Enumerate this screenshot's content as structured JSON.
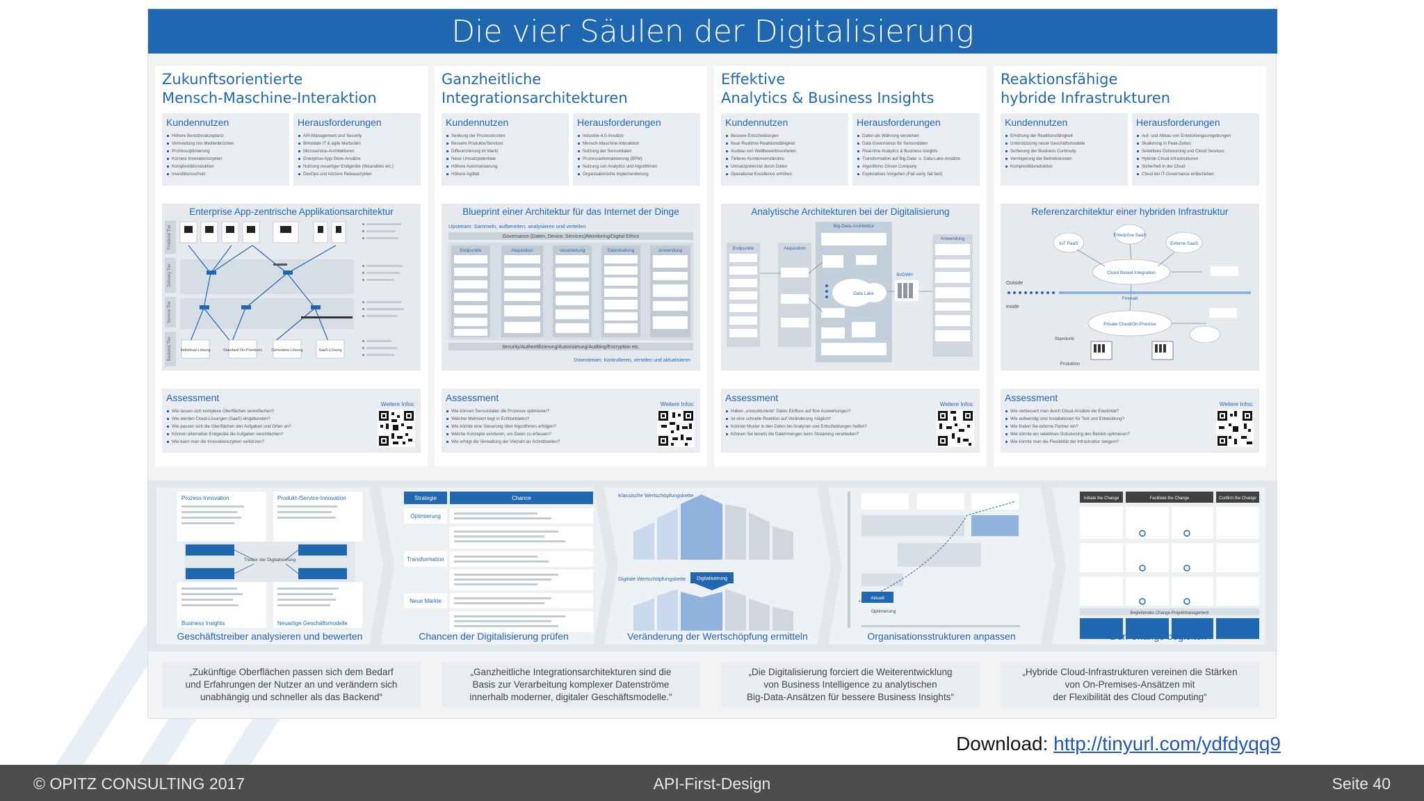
{
  "poster": {
    "title": "Die vier Säulen der Digitalisierung",
    "columns": [
      {
        "title_line1": "Zukunftsorientierte",
        "title_line2": "Mensch-Maschine-Interaktion",
        "benefits_label": "Kundennutzen",
        "benefits": [
          "Höhere Benutzerakzeptanz",
          "Vermeidung von Medienbrüchen",
          "Prozessoptimierung",
          "Kürzere Innovationszyklen",
          "Komplexitätsreduktion",
          "Investitionsschutz"
        ],
        "challenges_label": "Herausforderungen",
        "challenges": [
          "API-Management und Security",
          "Bimodale IT & agile Methoden",
          "Microservice-Architekturen",
          "Enterprise-App-Store-Ansätze",
          "Nutzung neuartiger Endgeräte (Wearables etc.)",
          "DevOps und kürzere Releasezyklen"
        ],
        "diagram_title": "Enterprise App-zentrische Applikationsarchitektur",
        "assessment_label": "Assessment",
        "more_label": "Weitere Infos:",
        "assessment": [
          "Wie lassen sich komplexe Oberflächen vereinfachen?",
          "Wie werden Cloud-Lösungen (SaaS) eingebunden?",
          "Wie passen sich die Oberflächen den Aufgaben und Orten an?",
          "Können alternative Endgeräte die Aufgaben vereinfachen?",
          "Wie kann man die Innovationszyklen verkürzen?"
        ],
        "quote_line1": "„Zukünftige Oberflächen passen sich dem Bedarf",
        "quote_line2": "und Erfahrungen der Nutzer an und verändern sich",
        "quote_line3": "unabhängig und schneller als das Backend“"
      },
      {
        "title_line1": "Ganzheitliche",
        "title_line2": "Integrationsarchitekturen",
        "benefits_label": "Kundennutzen",
        "benefits": [
          "Senkung der Prozesskosten",
          "Bessere Produkte/Services",
          "Differenzierung im Markt",
          "Neue Umsatzpotentiale",
          "Höhere Automatisierung",
          "Höhere Agilität"
        ],
        "challenges_label": "Herausforderungen",
        "challenges": [
          "Industrie-4.0-Ansätze",
          "Mensch-Maschine-Interaktion",
          "Nutzung der Sensordaten",
          "Prozessautomatisierung (BPM)",
          "Nutzung von Analytics und Algorithmen",
          "Organisatorische Implementierung"
        ],
        "diagram_title": "Blueprint einer Architektur für das Internet der Dinge",
        "assessment_label": "Assessment",
        "more_label": "Weitere Infos:",
        "assessment": [
          "Wie können Sensordaten die Prozesse optimieren?",
          "Welcher Mehrwert liegt in Echtzeitdaten?",
          "Wie könnte eine Steuerung über Algorithmen erfolgen?",
          "Welche Konzepte existieren, um Daten zu erfassen?",
          "Wie erfolgt die Verwaltung der Vielzahl an Schnittstellen?"
        ],
        "quote_line1": "„Ganzheitliche Integrationsarchitekturen sind die",
        "quote_line2": "Basis zur Verarbeitung komplexer Datenströme",
        "quote_line3": "innerhalb moderner, digitaler Geschäftsmodelle.“"
      },
      {
        "title_line1": "Effektive",
        "title_line2": "Analytics & Business Insights",
        "benefits_label": "Kundennutzen",
        "benefits": [
          "Bessere Entscheidungen",
          "Near-Realtime Reaktionsfähigkeit",
          "Ausbau von Wettbewerbsvorteilen",
          "Tieferes Kundenverständnis",
          "Umsatzpotenzial durch Daten",
          "Operational Excellence erhöhen"
        ],
        "challenges_label": "Herausforderungen",
        "challenges": [
          "Daten als Währung verstehen",
          "Data Governance für Sensordaten",
          "Real-time Analytics & Business Insights",
          "Transformation auf Big-Data- u. Data-Lake-Ansätze",
          "Algorithmic Driven Company",
          "Exploratives Vorgehen (Fail early, fail fast)"
        ],
        "diagram_title": "Analytische Architekturen bei der Digitalisierung",
        "assessment_label": "Assessment",
        "more_label": "Weitere Infos:",
        "assessment": [
          "Haben „unstrukturierte“ Daten Einfluss auf Ihre Auswertungen?",
          "Ist eine schnelle Reaktion auf Veränderung möglich?",
          "Können Muster in den Daten bei Analysen und Entscheidungen helfen?",
          "Können Sie bereits die Datenmengen beim Streaming verarbeiten?"
        ],
        "quote_line1": "„Die Digitalisierung forciert die Weiterentwicklung",
        "quote_line2": "von Business Intelligence zu analytischen",
        "quote_line3": "Big-Data-Ansätzen für bessere Business Insights“"
      },
      {
        "title_line1": "Reaktionsfähige",
        "title_line2": "hybride Infrastrukturen",
        "benefits_label": "Kundennutzen",
        "benefits": [
          "Erhöhung der Reaktionsfähigkeit",
          "Unterstützung neuer Geschäftsmodelle",
          "Sicherung der Business Continuity",
          "Verringerung der Betriebskosten",
          "Komplexitätsreduktion"
        ],
        "challenges_label": "Herausforderungen",
        "challenges": [
          "Auf- und Abbau von Entwicklungsumgebungen",
          "Skalierung in Peak-Zeiten",
          "Selektives Outsourcing und Cloud Services",
          "Hybride Cloud-Infrastrukturen",
          "Sicherheit in der Cloud",
          "Cloud bei IT-Governance einbeziehen"
        ],
        "diagram_title": "Referenzarchitektur einer hybriden Infrastruktur",
        "assessment_label": "Assessment",
        "more_label": "Weitere Infos:",
        "assessment": [
          "Wie verbessert man durch Cloud-Ansätze die Elastizität?",
          "Wie aufwendig sind Installationen für Test und Entwicklung?",
          "Wie finden Sie externe Partner ein?",
          "Wie könnte ein selektives Outsourcing des Betrieb optimieren?",
          "Wie könnte man die Flexibilität der Infrastruktur steigern?"
        ],
        "quote_line1": "„Hybride Cloud-Infrastrukturen vereinen die Stärken",
        "quote_line2": "von On-Premises-Ansätzen mit",
        "quote_line3": "der Flexibilität des Cloud Computing“"
      }
    ],
    "steps": [
      "Geschäftstreiber analysieren und bewerten",
      "Chancen der Digitalisierung prüfen",
      "Veränderung der Wertschöpfung ermitteln",
      "Organisationsstrukturen anpassen",
      "Den Change begleiten"
    ],
    "step_details": {
      "s1_top_left": "Prozess-Innovation",
      "s1_top_right": "Produkt-/Service-Innovation",
      "s1_bottom_left": "Business Insights",
      "s1_bottom_right": "Neuartige Geschäftsmodelle",
      "s1_center": "Treiber der Digitalisierung",
      "s2_head_left": "Strategie",
      "s2_head_right": "Chance",
      "s2_rows": [
        "Optimierung",
        "Transformation",
        "Neue Märkte"
      ],
      "s3_top": "Klassische Wertschöpfungskette",
      "s3_mid": "Digitale Wertschöpfungskette",
      "s3_badge": "Digitalisierung",
      "s4_badge": "Aktuell",
      "s4_note": "Optimierung",
      "s5_heads": [
        "Initiate the Change",
        "Facilitate the Change",
        "Confirm the Change"
      ],
      "s5_bar": "Begleitendes Change-Projektmanagement"
    },
    "diagram_labels": {
      "iot_upstream": "Upstream: Sammeln, aufbereiten, analysieren und verteilen",
      "iot_governance": "Governance (Daten, Device, Services)/Monitoring/Digital Ethics",
      "iot_security": "Security/Authentifizierung/Autorisierung/Auditing/Encryption etc.",
      "iot_downstream": "Downstream: Kontrollieren, verteilen und aktualisieren",
      "iot_cols": [
        "Endpunkte",
        "Akquisition",
        "Verarbeitung",
        "Datenhaltung",
        "Anwendung"
      ],
      "ana_bigdata": "Big-Data-Architektur",
      "ana_bi": "BI/DWH",
      "ana_lake": "Data Lake",
      "infra_outside": "Outside",
      "infra_inside": "Inside",
      "infra_firewall": "Firewall",
      "infra_public": "Cloud Based Integration",
      "infra_private": "Private Cloud/On-Premise",
      "infra_iot": "IoT PaaS",
      "infra_saas": "Enterprise SaaS",
      "infra_ext": "Externe SaaS",
      "infra_site": "Standorte",
      "infra_prod": "Produktion",
      "app_tiers": [
        "Frontend Tier",
        "Delivery Tier",
        "Service Tier",
        "Backend Tier"
      ],
      "app_backends": [
        "Individual-Lösung",
        "Standard On-Premises",
        "Gehostete Lösung",
        "SaaS-Lösung"
      ]
    }
  },
  "download": {
    "label": "Download:",
    "url": "http://tinyurl.com/ydfdyqq9"
  },
  "footer": {
    "copyright": "© OPITZ CONSULTING 2017",
    "title": "API-First-Design",
    "page": "Seite 40"
  },
  "colors": {
    "accent": "#1f67b1",
    "footer": "#4d4d4d",
    "panel": "#e9ecf0"
  }
}
